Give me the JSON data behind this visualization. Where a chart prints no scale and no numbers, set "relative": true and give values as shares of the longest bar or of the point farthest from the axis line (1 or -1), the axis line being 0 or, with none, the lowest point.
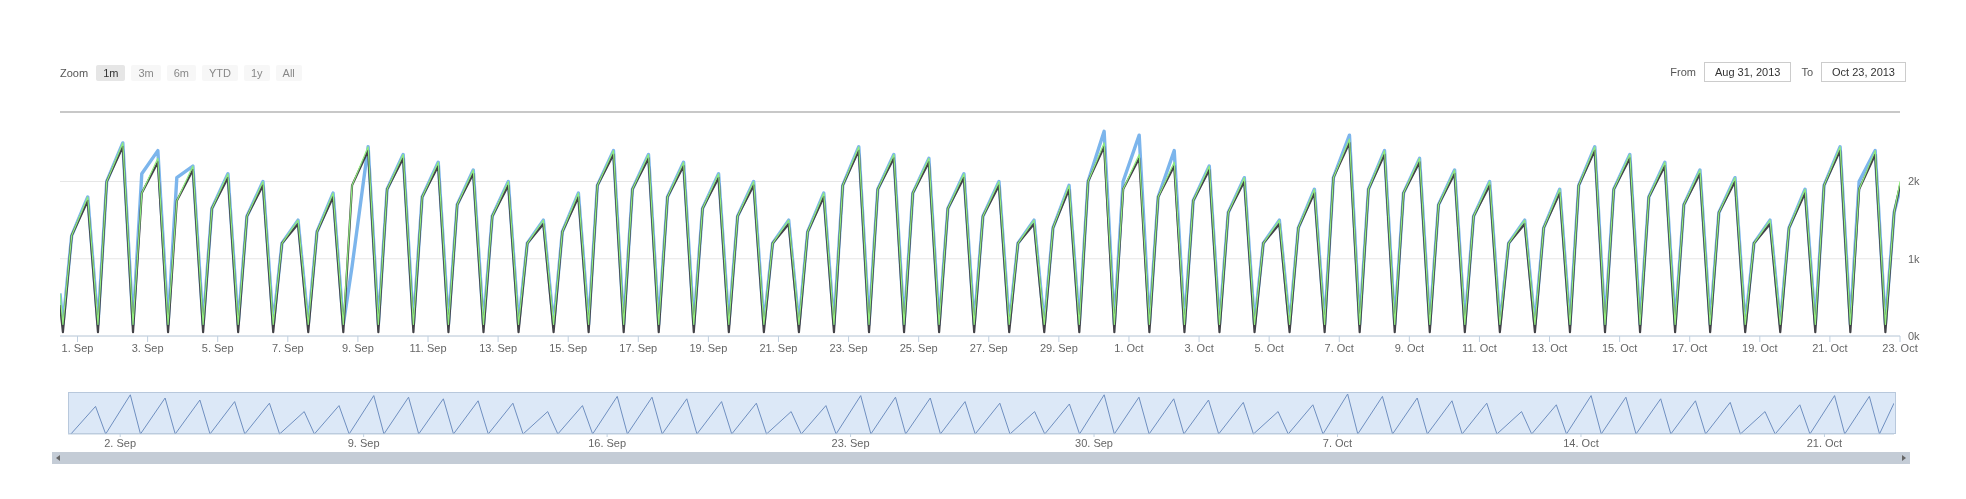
{
  "chart_data": [
    {
      "type": "line",
      "annotations": [
        "Zoom",
        "1m",
        "3m",
        "6m",
        "YTD",
        "1y",
        "All",
        "From",
        "Aug 31, 2013",
        "To",
        "Oct 23, 2013"
      ],
      "x": [
        "2013-08-31T12:00",
        "2013-08-31T14:00",
        "2013-08-31T20:00",
        "2013-09-01T07:00",
        "2013-09-01T14:00",
        "2013-09-01T20:00",
        "2013-09-02T07:00",
        "2013-09-02T14:00",
        "2013-09-02T20:00",
        "2013-09-03T07:00",
        "2013-09-03T14:00",
        "2013-09-03T20:00",
        "2013-09-04T07:00",
        "2013-09-04T14:00",
        "2013-09-04T20:00",
        "2013-09-05T07:00",
        "2013-09-05T14:00",
        "2013-09-05T20:00",
        "2013-09-06T07:00",
        "2013-09-06T14:00",
        "2013-09-06T20:00",
        "2013-09-07T07:00",
        "2013-09-07T14:00",
        "2013-09-07T20:00",
        "2013-09-08T07:00",
        "2013-09-08T14:00",
        "2013-09-08T20:00",
        "2013-09-09T07:00",
        "2013-09-09T14:00",
        "2013-09-09T20:00",
        "2013-09-10T07:00",
        "2013-09-10T14:00",
        "2013-09-10T20:00",
        "2013-09-11T07:00",
        "2013-09-11T14:00",
        "2013-09-11T20:00",
        "2013-09-12T07:00",
        "2013-09-12T14:00",
        "2013-09-12T20:00",
        "2013-09-13T07:00",
        "2013-09-13T14:00",
        "2013-09-13T20:00",
        "2013-09-14T07:00",
        "2013-09-14T14:00",
        "2013-09-14T20:00",
        "2013-09-15T07:00",
        "2013-09-15T14:00",
        "2013-09-15T20:00",
        "2013-09-16T07:00",
        "2013-09-16T14:00",
        "2013-09-16T20:00",
        "2013-09-17T07:00",
        "2013-09-17T14:00",
        "2013-09-17T20:00",
        "2013-09-18T07:00",
        "2013-09-18T14:00",
        "2013-09-18T20:00",
        "2013-09-19T07:00",
        "2013-09-19T14:00",
        "2013-09-19T20:00",
        "2013-09-20T07:00",
        "2013-09-20T14:00",
        "2013-09-20T20:00",
        "2013-09-21T07:00",
        "2013-09-21T14:00",
        "2013-09-21T20:00",
        "2013-09-22T07:00",
        "2013-09-22T14:00",
        "2013-09-22T20:00",
        "2013-09-23T07:00",
        "2013-09-23T14:00",
        "2013-09-23T20:00",
        "2013-09-24T07:00",
        "2013-09-24T14:00",
        "2013-09-24T20:00",
        "2013-09-25T07:00",
        "2013-09-25T14:00",
        "2013-09-25T20:00",
        "2013-09-26T07:00",
        "2013-09-26T14:00",
        "2013-09-26T20:00",
        "2013-09-27T07:00",
        "2013-09-27T14:00",
        "2013-09-27T20:00",
        "2013-09-28T07:00",
        "2013-09-28T14:00",
        "2013-09-28T20:00",
        "2013-09-29T07:00",
        "2013-09-29T14:00",
        "2013-09-29T20:00",
        "2013-09-30T07:00",
        "2013-09-30T14:00",
        "2013-09-30T20:00",
        "2013-10-01T07:00",
        "2013-10-01T14:00",
        "2013-10-01T20:00",
        "2013-10-02T07:00",
        "2013-10-02T14:00",
        "2013-10-02T20:00",
        "2013-10-03T07:00",
        "2013-10-03T14:00",
        "2013-10-03T20:00",
        "2013-10-04T07:00",
        "2013-10-04T14:00",
        "2013-10-04T20:00",
        "2013-10-05T07:00",
        "2013-10-05T14:00",
        "2013-10-05T20:00",
        "2013-10-06T07:00",
        "2013-10-06T14:00",
        "2013-10-06T20:00",
        "2013-10-07T07:00",
        "2013-10-07T14:00",
        "2013-10-07T20:00",
        "2013-10-08T07:00",
        "2013-10-08T14:00",
        "2013-10-08T20:00",
        "2013-10-09T07:00",
        "2013-10-09T14:00",
        "2013-10-09T20:00",
        "2013-10-10T07:00",
        "2013-10-10T14:00",
        "2013-10-10T20:00",
        "2013-10-11T07:00",
        "2013-10-11T14:00",
        "2013-10-11T20:00",
        "2013-10-12T07:00",
        "2013-10-12T14:00",
        "2013-10-12T20:00",
        "2013-10-13T07:00",
        "2013-10-13T14:00",
        "2013-10-13T20:00",
        "2013-10-14T07:00",
        "2013-10-14T14:00",
        "2013-10-14T20:00",
        "2013-10-15T07:00",
        "2013-10-15T14:00",
        "2013-10-15T20:00",
        "2013-10-16T07:00",
        "2013-10-16T14:00",
        "2013-10-16T20:00",
        "2013-10-17T07:00",
        "2013-10-17T14:00",
        "2013-10-17T20:00",
        "2013-10-18T07:00",
        "2013-10-18T14:00",
        "2013-10-18T20:00",
        "2013-10-19T07:00",
        "2013-10-19T14:00",
        "2013-10-19T20:00",
        "2013-10-20T07:00",
        "2013-10-20T14:00",
        "2013-10-20T20:00",
        "2013-10-21T07:00",
        "2013-10-21T14:00",
        "2013-10-21T20:00",
        "2013-10-22T07:00",
        "2013-10-22T14:00",
        "2013-10-22T20:00",
        "2013-10-23T00:00"
      ],
      "xlim": [
        "2013-08-31T12:00",
        "2013-10-23T00:00"
      ],
      "xticks": [
        {
          "value": "2013-09-01",
          "label": "1. Sep"
        },
        {
          "value": "2013-09-03",
          "label": "3. Sep"
        },
        {
          "value": "2013-09-05",
          "label": "5. Sep"
        },
        {
          "value": "2013-09-07",
          "label": "7. Sep"
        },
        {
          "value": "2013-09-09",
          "label": "9. Sep"
        },
        {
          "value": "2013-09-11",
          "label": "11. Sep"
        },
        {
          "value": "2013-09-13",
          "label": "13. Sep"
        },
        {
          "value": "2013-09-15",
          "label": "15. Sep"
        },
        {
          "value": "2013-09-17",
          "label": "17. Sep"
        },
        {
          "value": "2013-09-19",
          "label": "19. Sep"
        },
        {
          "value": "2013-09-21",
          "label": "21. Sep"
        },
        {
          "value": "2013-09-23",
          "label": "23. Sep"
        },
        {
          "value": "2013-09-25",
          "label": "25. Sep"
        },
        {
          "value": "2013-09-27",
          "label": "27. Sep"
        },
        {
          "value": "2013-09-29",
          "label": "29. Sep"
        },
        {
          "value": "2013-10-01",
          "label": "1. Oct"
        },
        {
          "value": "2013-10-03",
          "label": "3. Oct"
        },
        {
          "value": "2013-10-05",
          "label": "5. Oct"
        },
        {
          "value": "2013-10-07",
          "label": "7. Oct"
        },
        {
          "value": "2013-10-09",
          "label": "9. Oct"
        },
        {
          "value": "2013-10-11",
          "label": "11. Oct"
        },
        {
          "value": "2013-10-13",
          "label": "13. Oct"
        },
        {
          "value": "2013-10-15",
          "label": "15. Oct"
        },
        {
          "value": "2013-10-17",
          "label": "17. Oct"
        },
        {
          "value": "2013-10-19",
          "label": "19. Oct"
        },
        {
          "value": "2013-10-21",
          "label": "21. Oct"
        },
        {
          "value": "2013-10-23",
          "label": "23. Oct"
        }
      ],
      "ylim": [
        0,
        2.9
      ],
      "yticks": [
        {
          "value": 0,
          "label": "0k"
        },
        {
          "value": 1,
          "label": "1k"
        },
        {
          "value": 2,
          "label": "2k"
        }
      ],
      "grid": "y",
      "series": [
        {
          "color": "#7cb5ec",
          "values": [
            0.55,
            0.15,
            1.3,
            1.8,
            0.15,
            2.0,
            2.5,
            0.15,
            2.1,
            2.4,
            0.15,
            2.05,
            2.2,
            0.15,
            1.65,
            2.1,
            0.15,
            1.55,
            2.0,
            0.15,
            1.2,
            1.5,
            0.15,
            1.35,
            1.85,
            0.15,
            0.9,
            2.45,
            0.15,
            1.9,
            2.35,
            0.15,
            1.8,
            2.25,
            0.15,
            1.7,
            2.15,
            0.15,
            1.55,
            2.0,
            0.15,
            1.2,
            1.5,
            0.15,
            1.35,
            1.85,
            0.15,
            1.95,
            2.4,
            0.15,
            1.9,
            2.35,
            0.15,
            1.8,
            2.25,
            0.15,
            1.65,
            2.1,
            0.15,
            1.55,
            2.0,
            0.15,
            1.2,
            1.5,
            0.15,
            1.35,
            1.85,
            0.15,
            1.95,
            2.45,
            0.15,
            1.9,
            2.35,
            0.15,
            1.85,
            2.3,
            0.15,
            1.65,
            2.1,
            0.15,
            1.55,
            2.0,
            0.15,
            1.2,
            1.5,
            0.15,
            1.4,
            1.95,
            0.15,
            2.0,
            2.65,
            0.15,
            2.0,
            2.6,
            0.15,
            1.8,
            2.4,
            0.15,
            1.75,
            2.2,
            0.15,
            1.6,
            2.05,
            0.15,
            1.2,
            1.5,
            0.15,
            1.4,
            1.9,
            0.15,
            2.05,
            2.6,
            0.15,
            1.9,
            2.4,
            0.15,
            1.85,
            2.3,
            0.15,
            1.7,
            2.15,
            0.15,
            1.55,
            2.0,
            0.15,
            1.2,
            1.5,
            0.15,
            1.4,
            1.9,
            0.15,
            1.95,
            2.45,
            0.15,
            1.9,
            2.35,
            0.15,
            1.8,
            2.25,
            0.15,
            1.7,
            2.15,
            0.15,
            1.6,
            2.05,
            0.15,
            1.2,
            1.5,
            0.15,
            1.4,
            1.9,
            0.15,
            1.95,
            2.45,
            0.15,
            2.0,
            2.4,
            0.15,
            1.6,
            1.9
          ]
        },
        {
          "color": "#434348",
          "values": [
            0.4,
            0.05,
            1.3,
            1.75,
            0.05,
            2.0,
            2.45,
            0.05,
            1.85,
            2.25,
            0.05,
            1.75,
            2.15,
            0.05,
            1.65,
            2.05,
            0.05,
            1.55,
            1.95,
            0.05,
            1.2,
            1.45,
            0.05,
            1.35,
            1.8,
            0.05,
            1.95,
            2.4,
            0.05,
            1.9,
            2.3,
            0.05,
            1.8,
            2.2,
            0.05,
            1.7,
            2.1,
            0.05,
            1.55,
            1.95,
            0.05,
            1.2,
            1.45,
            0.05,
            1.35,
            1.8,
            0.05,
            1.95,
            2.35,
            0.05,
            1.9,
            2.3,
            0.05,
            1.8,
            2.2,
            0.05,
            1.65,
            2.05,
            0.05,
            1.55,
            1.95,
            0.05,
            1.2,
            1.45,
            0.05,
            1.35,
            1.8,
            0.05,
            1.95,
            2.4,
            0.05,
            1.9,
            2.3,
            0.05,
            1.85,
            2.25,
            0.05,
            1.65,
            2.05,
            0.05,
            1.55,
            1.95,
            0.05,
            1.2,
            1.45,
            0.05,
            1.4,
            1.9,
            0.05,
            2.0,
            2.45,
            0.05,
            1.9,
            2.3,
            0.05,
            1.8,
            2.2,
            0.05,
            1.75,
            2.15,
            0.05,
            1.6,
            2.0,
            0.05,
            1.2,
            1.45,
            0.05,
            1.4,
            1.85,
            0.05,
            2.05,
            2.5,
            0.05,
            1.9,
            2.35,
            0.05,
            1.85,
            2.25,
            0.05,
            1.7,
            2.1,
            0.05,
            1.55,
            1.95,
            0.05,
            1.2,
            1.45,
            0.05,
            1.4,
            1.85,
            0.05,
            1.95,
            2.4,
            0.05,
            1.9,
            2.3,
            0.05,
            1.8,
            2.2,
            0.05,
            1.7,
            2.1,
            0.05,
            1.6,
            2.0,
            0.05,
            1.2,
            1.45,
            0.05,
            1.4,
            1.85,
            0.05,
            1.95,
            2.4,
            0.05,
            1.9,
            2.35,
            0.05,
            1.6,
            1.95
          ]
        },
        {
          "color": "#90ed7d",
          "values": [
            0.55,
            0.15,
            1.3,
            1.8,
            0.15,
            2.0,
            2.5,
            0.15,
            1.85,
            2.3,
            0.15,
            1.75,
            2.2,
            0.15,
            1.65,
            2.1,
            0.15,
            1.55,
            2.0,
            0.15,
            1.2,
            1.5,
            0.15,
            1.35,
            1.85,
            0.15,
            1.95,
            2.45,
            0.15,
            1.9,
            2.35,
            0.15,
            1.8,
            2.25,
            0.15,
            1.7,
            2.15,
            0.15,
            1.55,
            2.0,
            0.15,
            1.2,
            1.5,
            0.15,
            1.35,
            1.85,
            0.15,
            1.95,
            2.4,
            0.15,
            1.9,
            2.35,
            0.15,
            1.8,
            2.25,
            0.15,
            1.65,
            2.1,
            0.15,
            1.55,
            2.0,
            0.15,
            1.2,
            1.5,
            0.15,
            1.35,
            1.85,
            0.15,
            1.95,
            2.45,
            0.15,
            1.9,
            2.35,
            0.15,
            1.85,
            2.3,
            0.15,
            1.65,
            2.1,
            0.15,
            1.55,
            2.0,
            0.15,
            1.2,
            1.5,
            0.15,
            1.4,
            1.95,
            0.15,
            2.0,
            2.5,
            0.15,
            1.9,
            2.35,
            0.15,
            1.8,
            2.25,
            0.15,
            1.75,
            2.2,
            0.15,
            1.6,
            2.05,
            0.15,
            1.2,
            1.5,
            0.15,
            1.4,
            1.9,
            0.15,
            2.05,
            2.55,
            0.15,
            1.9,
            2.4,
            0.15,
            1.85,
            2.3,
            0.15,
            1.7,
            2.15,
            0.15,
            1.55,
            2.0,
            0.15,
            1.2,
            1.5,
            0.15,
            1.4,
            1.9,
            0.15,
            1.95,
            2.45,
            0.15,
            1.9,
            2.35,
            0.15,
            1.8,
            2.25,
            0.15,
            1.7,
            2.15,
            0.15,
            1.6,
            2.05,
            0.15,
            1.2,
            1.5,
            0.15,
            1.4,
            1.9,
            0.15,
            1.95,
            2.45,
            0.15,
            1.9,
            2.4,
            0.15,
            1.6,
            2.0
          ]
        }
      ]
    },
    {
      "type": "line",
      "relative": true,
      "x": [
        "2013-08-31T14:00",
        "2013-09-01T07:00",
        "2013-09-01T14:00",
        "2013-09-02T07:00",
        "2013-09-02T14:00",
        "2013-09-03T07:00",
        "2013-09-03T14:00",
        "2013-09-04T07:00",
        "2013-09-04T14:00",
        "2013-09-05T07:00",
        "2013-09-05T14:00",
        "2013-09-06T07:00",
        "2013-09-06T14:00",
        "2013-09-07T07:00",
        "2013-09-07T14:00",
        "2013-09-08T07:00",
        "2013-09-08T14:00",
        "2013-09-09T07:00",
        "2013-09-09T14:00",
        "2013-09-10T07:00",
        "2013-09-10T14:00",
        "2013-09-11T07:00",
        "2013-09-11T14:00",
        "2013-09-12T07:00",
        "2013-09-12T14:00",
        "2013-09-13T07:00",
        "2013-09-13T14:00",
        "2013-09-14T07:00",
        "2013-09-14T14:00",
        "2013-09-15T07:00",
        "2013-09-15T14:00",
        "2013-09-16T07:00",
        "2013-09-16T14:00",
        "2013-09-17T07:00",
        "2013-09-17T14:00",
        "2013-09-18T07:00",
        "2013-09-18T14:00",
        "2013-09-19T07:00",
        "2013-09-19T14:00",
        "2013-09-20T07:00",
        "2013-09-20T14:00",
        "2013-09-21T07:00",
        "2013-09-21T14:00",
        "2013-09-22T07:00",
        "2013-09-22T14:00",
        "2013-09-23T07:00",
        "2013-09-23T14:00",
        "2013-09-24T07:00",
        "2013-09-24T14:00",
        "2013-09-25T07:00",
        "2013-09-25T14:00",
        "2013-09-26T07:00",
        "2013-09-26T14:00",
        "2013-09-27T07:00",
        "2013-09-27T14:00",
        "2013-09-28T07:00",
        "2013-09-28T14:00",
        "2013-09-29T07:00",
        "2013-09-29T14:00",
        "2013-09-30T07:00",
        "2013-09-30T14:00",
        "2013-10-01T07:00",
        "2013-10-01T14:00",
        "2013-10-02T07:00",
        "2013-10-02T14:00",
        "2013-10-03T07:00",
        "2013-10-03T14:00",
        "2013-10-04T07:00",
        "2013-10-04T14:00",
        "2013-10-05T07:00",
        "2013-10-05T14:00",
        "2013-10-06T07:00",
        "2013-10-06T14:00",
        "2013-10-07T07:00",
        "2013-10-07T14:00",
        "2013-10-08T07:00",
        "2013-10-08T14:00",
        "2013-10-09T07:00",
        "2013-10-09T14:00",
        "2013-10-10T07:00",
        "2013-10-10T14:00",
        "2013-10-11T07:00",
        "2013-10-11T14:00",
        "2013-10-12T07:00",
        "2013-10-12T14:00",
        "2013-10-13T07:00",
        "2013-10-13T14:00",
        "2013-10-14T07:00",
        "2013-10-14T14:00",
        "2013-10-15T07:00",
        "2013-10-15T14:00",
        "2013-10-16T07:00",
        "2013-10-16T14:00",
        "2013-10-17T07:00",
        "2013-10-17T14:00",
        "2013-10-18T07:00",
        "2013-10-18T14:00",
        "2013-10-19T07:00",
        "2013-10-19T14:00",
        "2013-10-20T07:00",
        "2013-10-20T14:00",
        "2013-10-21T07:00",
        "2013-10-21T14:00",
        "2013-10-22T07:00",
        "2013-10-22T14:00",
        "2013-10-23T00:00"
      ],
      "xlim": [
        "2013-08-31T12:00",
        "2013-10-23T00:00"
      ],
      "xticks": [
        {
          "value": "2013-09-02",
          "label": "2. Sep"
        },
        {
          "value": "2013-09-09",
          "label": "9. Sep"
        },
        {
          "value": "2013-09-16",
          "label": "16. Sep"
        },
        {
          "value": "2013-09-23",
          "label": "23. Sep"
        },
        {
          "value": "2013-09-30",
          "label": "30. Sep"
        },
        {
          "value": "2013-10-07",
          "label": "7. Oct"
        },
        {
          "value": "2013-10-14",
          "label": "14. Oct"
        },
        {
          "value": "2013-10-21",
          "label": "21. Oct"
        }
      ],
      "series": [
        {
          "color": "#6f8fc0",
          "values": [
            0,
            0.69,
            0,
            0.98,
            0,
            0.9,
            0,
            0.85,
            0,
            0.81,
            0,
            0.77,
            0,
            0.56,
            0,
            0.71,
            0,
            0.96,
            0,
            0.92,
            0,
            0.88,
            0,
            0.83,
            0,
            0.77,
            0,
            0.56,
            0,
            0.71,
            0,
            0.94,
            0,
            0.92,
            0,
            0.88,
            0,
            0.81,
            0,
            0.77,
            0,
            0.56,
            0,
            0.71,
            0,
            0.96,
            0,
            0.92,
            0,
            0.9,
            0,
            0.81,
            0,
            0.77,
            0,
            0.56,
            0,
            0.75,
            0,
            0.98,
            0,
            0.92,
            0,
            0.88,
            0,
            0.85,
            0,
            0.79,
            0,
            0.56,
            0,
            0.73,
            0,
            1,
            0,
            0.94,
            0,
            0.9,
            0,
            0.83,
            0,
            0.77,
            0,
            0.56,
            0,
            0.73,
            0,
            0.96,
            0,
            0.92,
            0,
            0.88,
            0,
            0.83,
            0,
            0.79,
            0,
            0.56,
            0,
            0.73,
            0,
            0.96,
            0,
            0.94,
            0,
            0.77
          ]
        }
      ]
    }
  ]
}
